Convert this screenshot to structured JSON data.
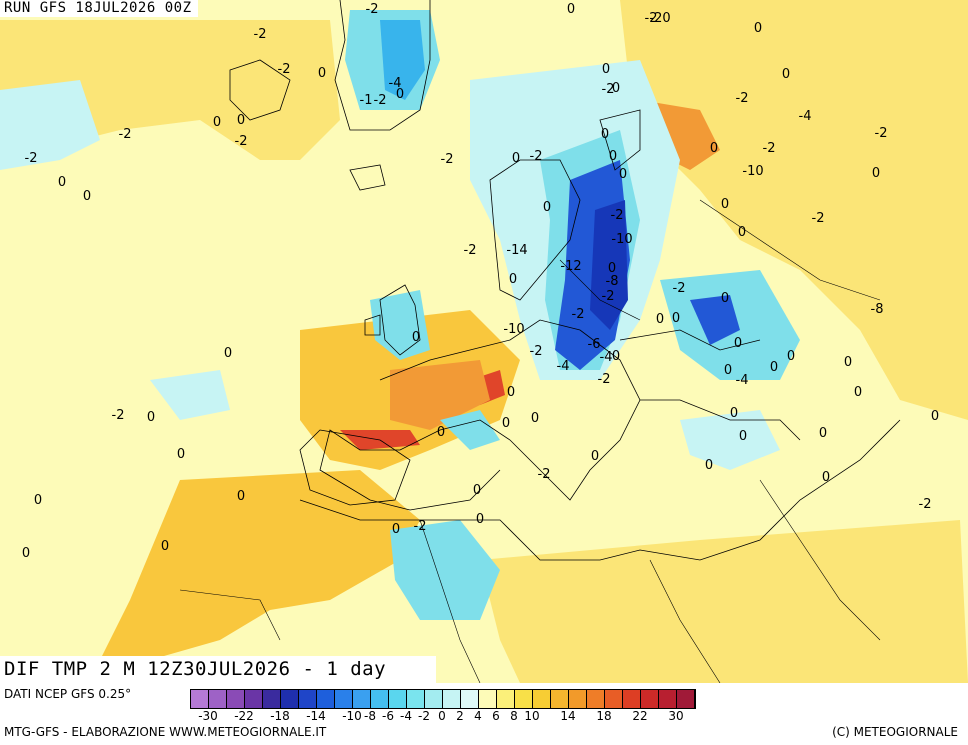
{
  "header": {
    "run_label": "RUN GFS 18JUL2026 00Z"
  },
  "map": {
    "title": "DIF TMP 2 M 12Z30JUL2026 - 1 day",
    "colors": {
      "sea_neutral": "#fdfbb8",
      "warm_light": "#fbe577",
      "warm_mid": "#f9c73d",
      "warm_strong": "#f29a36",
      "hot": "#e0452a",
      "cool_light": "#c7f4f4",
      "cool_mid": "#7fdfea",
      "cool_strong": "#38b4ec",
      "cold": "#2258d6",
      "very_cold": "#1637b8"
    },
    "contour_labels": [
      "-2",
      "0",
      "-2",
      "-20",
      "0",
      "-2",
      "-2",
      "0",
      "-4",
      "-1",
      "-2",
      "0",
      "0",
      "0",
      "-2",
      "-2",
      "-2",
      "0",
      "-2",
      "0",
      "0",
      "-2",
      "-2",
      "-4",
      "0",
      "0",
      "-2",
      "0",
      "-2",
      "0",
      "-2",
      "0",
      "0",
      "0",
      "0",
      "-2",
      "-10",
      "-10",
      "0",
      "0",
      "-2",
      "0",
      "-2",
      "-14",
      "-12",
      "0",
      "-8",
      "0",
      "-2",
      "0",
      "-2",
      "-8",
      "0",
      "-2",
      "0",
      "-6",
      "-4",
      "0",
      "0",
      "-2",
      "0",
      "-10",
      "0",
      "-4",
      "0",
      "0",
      "0",
      "-2",
      "-4",
      "0",
      "0",
      "0",
      "0",
      "0",
      "-2",
      "0",
      "0",
      "0",
      "0",
      "0",
      "0",
      "0",
      "0",
      "0",
      "-2",
      "0",
      "0",
      "0",
      "0",
      "-2",
      "0",
      "-2",
      "0",
      "0",
      "0"
    ]
  },
  "legend": {
    "source": "DATI NCEP GFS 0.25°",
    "credit": "MTG-GFS - ELABORAZIONE WWW.METEOGIORNALE.IT",
    "copyright": "(C) METEOGIORNALE",
    "scale_colors": [
      "#b57ad6",
      "#9e62c6",
      "#8a4bb6",
      "#6a35a6",
      "#3a2b9e",
      "#1f2fae",
      "#1f45c8",
      "#1e5fdc",
      "#2a80ea",
      "#3aa0f0",
      "#45bff0",
      "#5ad6ee",
      "#7ae4ee",
      "#a3ecf0",
      "#c6f4f4",
      "#dffaf8",
      "#fdfbb8",
      "#fbf07a",
      "#f8e048",
      "#f7cd34",
      "#f5b52e",
      "#f29a2a",
      "#ef7d28",
      "#e85d26",
      "#dd3e24",
      "#cc2a28",
      "#b81f30",
      "#a01a38"
    ],
    "ticks": [
      "-30",
      "-22",
      "-18",
      "-14",
      "-10",
      "-8",
      "-6",
      "-4",
      "-2",
      "0",
      "2",
      "4",
      "6",
      "8",
      "10",
      "14",
      "18",
      "22",
      "30"
    ]
  }
}
